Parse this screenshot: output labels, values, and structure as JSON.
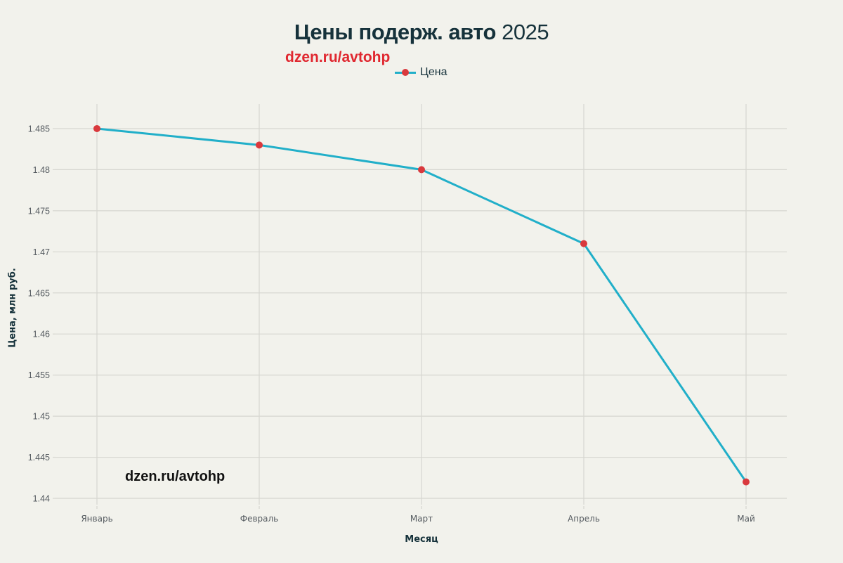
{
  "header": {
    "title_bold": "Цены подерж. авто",
    "title_year": "2025",
    "subtitle": "dzen.ru/avtohp"
  },
  "legend": {
    "label": "Цена"
  },
  "axes": {
    "xlabel": "Месяц",
    "ylabel": "Цена, млн руб."
  },
  "watermark": "dzen.ru/avtohp",
  "colors": {
    "line": "#21afc9",
    "marker": "#d9393d",
    "background": "#f2f2ec",
    "title": "#16323b",
    "subtitle": "#e02830",
    "grid": "#d6d6d0"
  },
  "chart_data": {
    "type": "line",
    "title": "Цены подерж. авто 2025",
    "subtitle": "dzen.ru/avtohp",
    "xlabel": "Месяц",
    "ylabel": "Цена, млн руб.",
    "categories": [
      "Январь",
      "Февраль",
      "Март",
      "Апрель",
      "Май"
    ],
    "series": [
      {
        "name": "Цена",
        "values": [
          1.485,
          1.483,
          1.48,
          1.471,
          1.442
        ]
      }
    ],
    "yticks": [
      "1.44",
      "1.445",
      "1.45",
      "1.455",
      "1.46",
      "1.465",
      "1.47",
      "1.475",
      "1.48",
      "1.485"
    ],
    "ylim": [
      1.437,
      1.488
    ],
    "grid": true,
    "legend_position": "top-center"
  }
}
